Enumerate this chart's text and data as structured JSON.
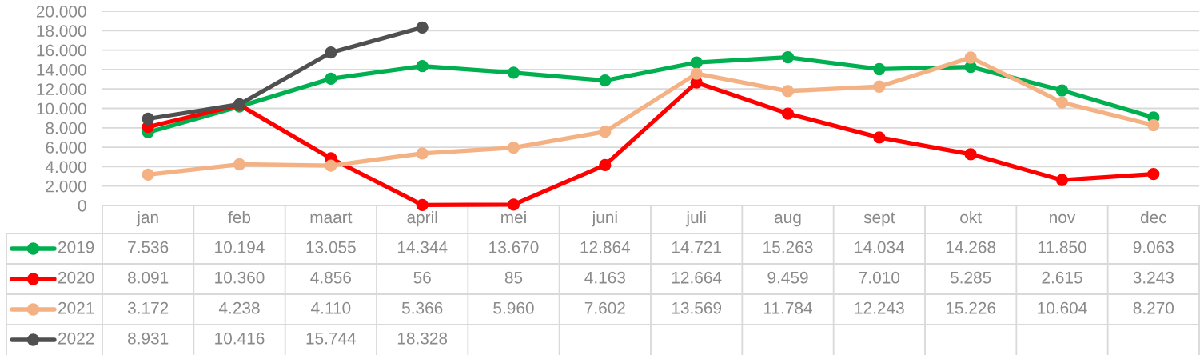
{
  "chart_data": {
    "type": "line",
    "categories": [
      "jan",
      "feb",
      "maart",
      "april",
      "mei",
      "juni",
      "juli",
      "aug",
      "sept",
      "okt",
      "nov",
      "dec"
    ],
    "ylim": [
      0,
      20000
    ],
    "yticks": [
      0,
      {
        "value": 2000,
        "label": "2.000"
      },
      {
        "value": 4000,
        "label": "4.000"
      },
      {
        "value": 6000,
        "label": "6.000"
      },
      {
        "value": 8000,
        "label": "8.000"
      },
      {
        "value": 10000,
        "label": "10.000"
      },
      {
        "value": 12000,
        "label": "12.000"
      },
      {
        "value": 14000,
        "label": "14.000"
      },
      {
        "value": 16000,
        "label": "16.000"
      },
      {
        "value": 18000,
        "label": "18.000"
      },
      {
        "value": 20000,
        "label": "20.000"
      }
    ],
    "grid": "y",
    "legend": "bottom left",
    "marker": "circle",
    "line_style": "solid",
    "series": [
      {
        "name": "2019",
        "color": "#00b050",
        "values": [
          7536,
          10194,
          13055,
          14344,
          13670,
          12864,
          14721,
          15263,
          14034,
          14268,
          11850,
          9063
        ],
        "value_labels": [
          "7.536",
          "10.194",
          "13.055",
          "14.344",
          "13.670",
          "12.864",
          "14.721",
          "15.263",
          "14.034",
          "14.268",
          "11.850",
          "9.063"
        ]
      },
      {
        "name": "2020",
        "color": "#ff0000",
        "values": [
          8091,
          10360,
          4856,
          56,
          85,
          4163,
          12664,
          9459,
          7010,
          5285,
          2615,
          3243
        ],
        "value_labels": [
          "8.091",
          "10.360",
          "4.856",
          "56",
          "85",
          "4.163",
          "12.664",
          "9.459",
          "7.010",
          "5.285",
          "2.615",
          "3.243"
        ]
      },
      {
        "name": "2021",
        "color": "#f4b183",
        "values": [
          3172,
          4238,
          4110,
          5366,
          5960,
          7602,
          13569,
          11784,
          12243,
          15226,
          10604,
          8270
        ],
        "value_labels": [
          "3.172",
          "4.238",
          "4.110",
          "5.366",
          "5.960",
          "7.602",
          "13.569",
          "11.784",
          "12.243",
          "15.226",
          "10.604",
          "8.270"
        ]
      },
      {
        "name": "2022",
        "color": "#505050",
        "values": [
          8931,
          10416,
          15744,
          18328,
          null,
          null,
          null,
          null,
          null,
          null,
          null,
          null
        ],
        "value_labels": [
          "8.931",
          "10.416",
          "15.744",
          "18.328",
          null,
          null,
          null,
          null,
          null,
          null,
          null,
          null
        ]
      }
    ]
  }
}
